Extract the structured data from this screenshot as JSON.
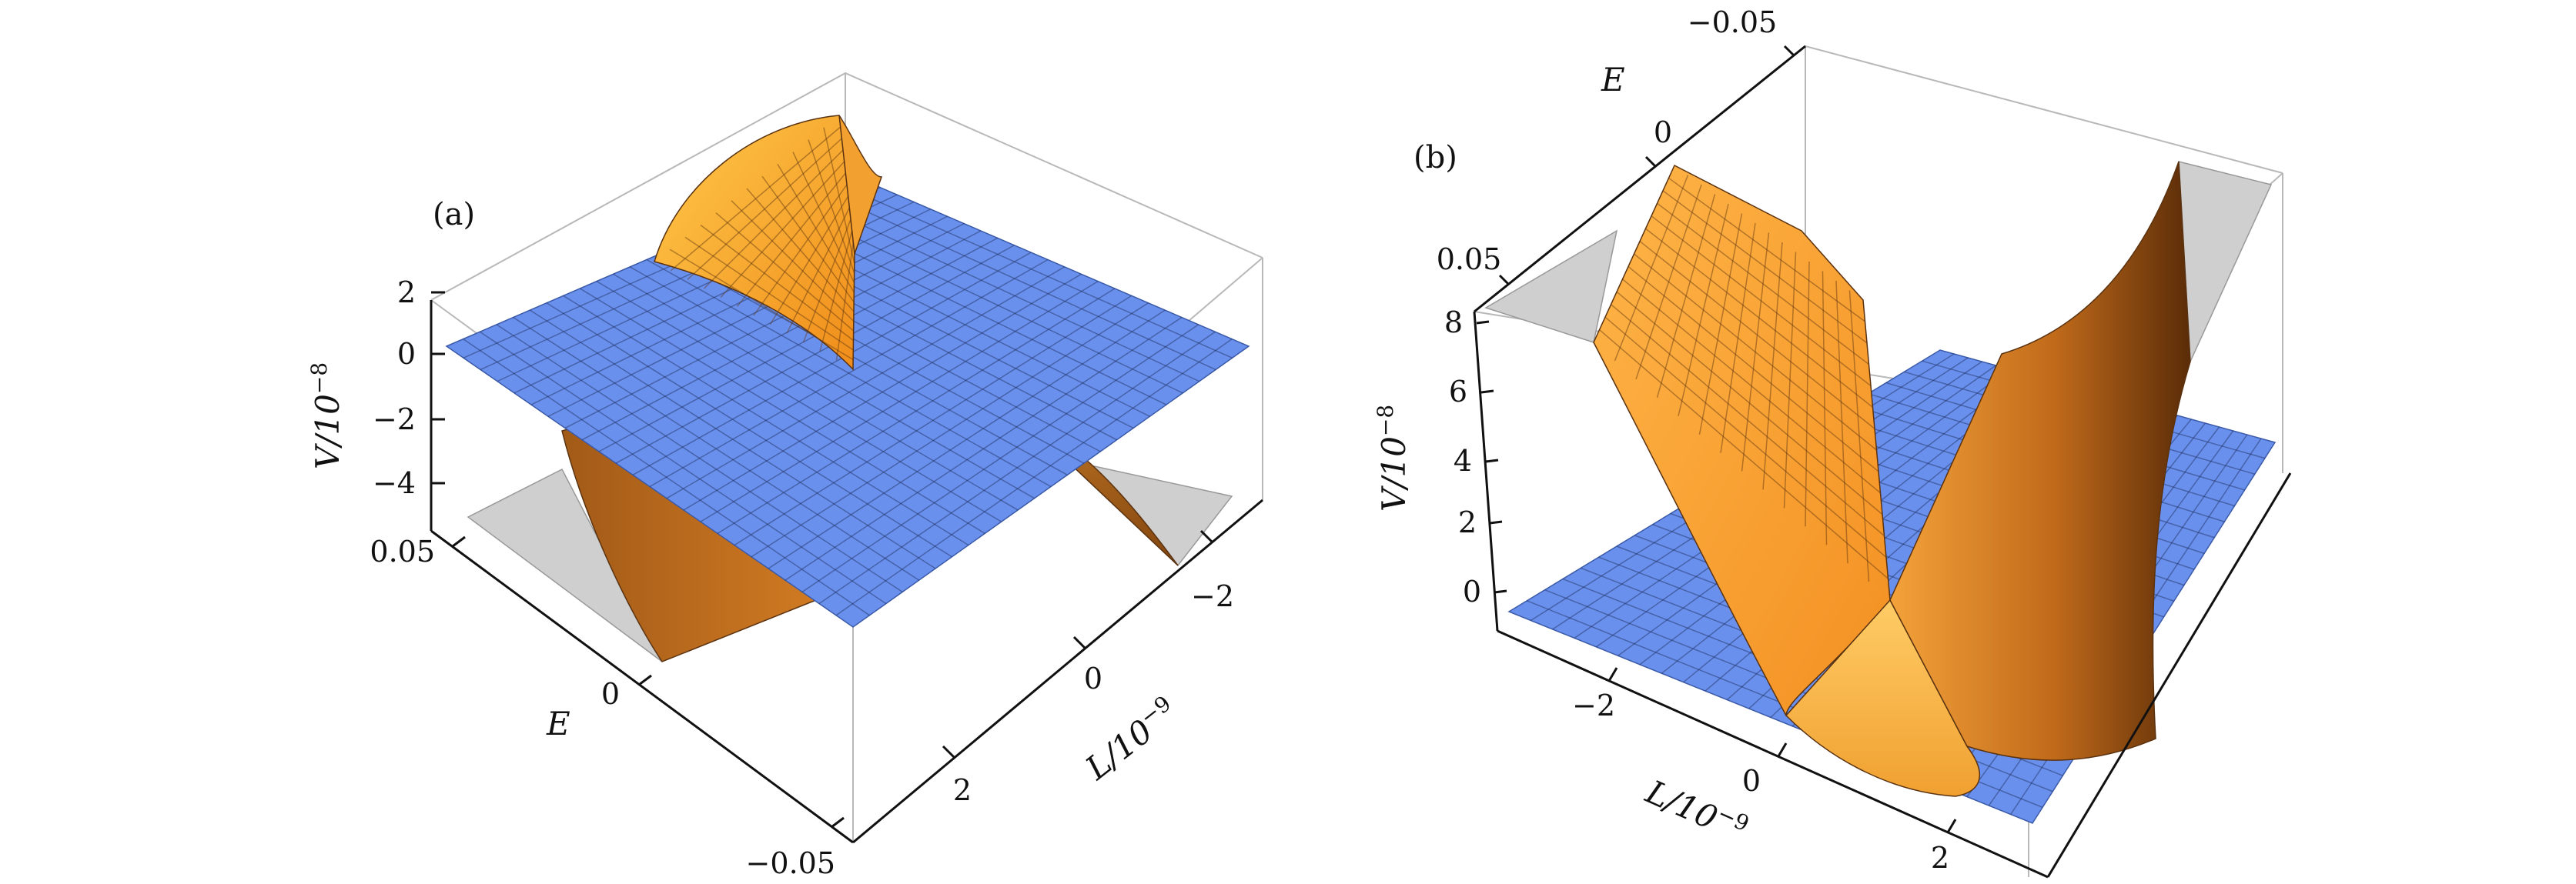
{
  "panels": [
    {
      "label": "(a)",
      "axes": {
        "v_label": "V/10",
        "v_exp": "−8",
        "l_label": "L/10",
        "l_exp": "−9",
        "e_label": "E"
      },
      "v_ticks": [
        "2",
        "0",
        "−2",
        "−4"
      ],
      "e_ticks": [
        "0.05",
        "0",
        "−0.05"
      ],
      "l_ticks": [
        "−2",
        "0",
        "2"
      ]
    },
    {
      "label": "(b)",
      "axes": {
        "v_label": "V/10",
        "v_exp": "−8",
        "l_label": "L/10",
        "l_exp": "−9",
        "e_label": "E"
      },
      "v_ticks": [
        "8",
        "6",
        "4",
        "2",
        "0"
      ],
      "e_ticks": [
        "−0.05",
        "0",
        "0.05"
      ],
      "l_ticks": [
        "−2",
        "0",
        "2"
      ]
    }
  ],
  "colors": {
    "plane": "#6a90ee",
    "surface_light": "#ffba3c",
    "surface_dark": "#8a4a12",
    "cap": "#cfcfcf"
  }
}
